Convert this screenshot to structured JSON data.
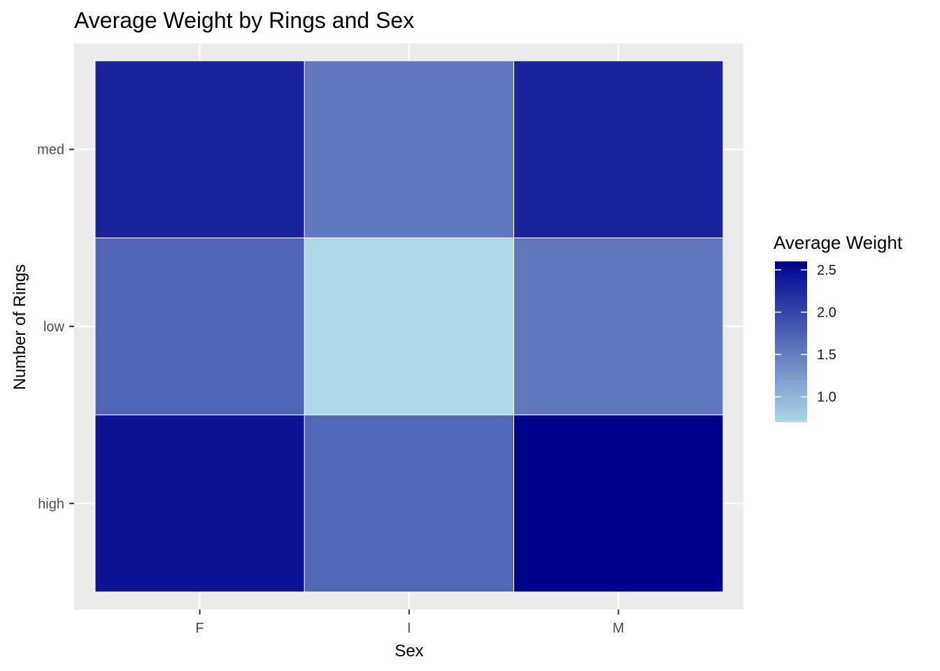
{
  "chart_data": {
    "type": "heatmap",
    "title": "Average Weight by Rings and Sex",
    "xlabel": "Sex",
    "ylabel": "Number of Rings",
    "x": [
      "F",
      "I",
      "M"
    ],
    "y": [
      "high",
      "low",
      "med"
    ],
    "values": [
      [
        2.45,
        1.7,
        2.6
      ],
      [
        1.72,
        0.7,
        1.55
      ],
      [
        2.3,
        1.55,
        2.3
      ]
    ],
    "grid": true,
    "legend": {
      "title": "Average Weight",
      "placement": "right",
      "range": [
        0.7,
        2.6
      ],
      "ticks": [
        1.0,
        1.5,
        2.0,
        2.5
      ],
      "tick_labels": [
        "1.0",
        "1.5",
        "2.0",
        "2.5"
      ],
      "low_color": "#add8e6",
      "high_color": "#00008b"
    },
    "panel_background": "#ebebeb"
  }
}
